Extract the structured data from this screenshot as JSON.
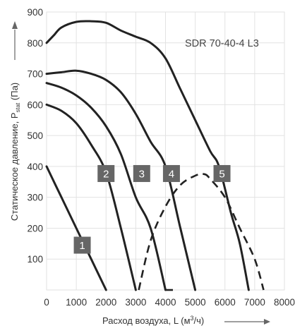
{
  "chart_data": {
    "type": "line",
    "title": "SDR 70-40-4 L3",
    "xlabel": "Расход воздуха, L (м³/ч)",
    "xlabel_parts": {
      "main": "Расход воздуха, L (м",
      "sup": "3",
      "tail": "/ч)"
    },
    "ylabel": "Статическое давление, Pstat (Па)",
    "ylabel_parts": {
      "main": "Статическое давление, P",
      "sub": "stat",
      "tail": " (Па)"
    },
    "xlim": [
      0,
      8000
    ],
    "ylim": [
      0,
      900
    ],
    "x_ticks": [
      "0",
      "1000",
      "2000",
      "3000",
      "4000",
      "5000",
      "6000",
      "7000",
      "8000"
    ],
    "y_ticks": [
      "0",
      "100",
      "200",
      "300",
      "400",
      "500",
      "600",
      "700",
      "800",
      "900"
    ],
    "grid": true,
    "series": [
      {
        "name": "1",
        "points": [
          [
            0,
            400
          ],
          [
            500,
            300
          ],
          [
            1000,
            200
          ],
          [
            1500,
            100
          ],
          [
            2000,
            0
          ]
        ]
      },
      {
        "name": "2",
        "points": [
          [
            0,
            600
          ],
          [
            500,
            580
          ],
          [
            1000,
            540
          ],
          [
            1500,
            470
          ],
          [
            2000,
            380
          ],
          [
            2500,
            200
          ],
          [
            3000,
            0
          ]
        ]
      },
      {
        "name": "3",
        "points": [
          [
            0,
            670
          ],
          [
            500,
            655
          ],
          [
            1000,
            630
          ],
          [
            1500,
            590
          ],
          [
            2000,
            530
          ],
          [
            2500,
            440
          ],
          [
            3000,
            300
          ],
          [
            3500,
            200
          ],
          [
            4000,
            0
          ]
        ]
      },
      {
        "name": "4",
        "points": [
          [
            0,
            700
          ],
          [
            500,
            705
          ],
          [
            1000,
            710
          ],
          [
            1500,
            700
          ],
          [
            2000,
            680
          ],
          [
            2500,
            640
          ],
          [
            3000,
            570
          ],
          [
            3500,
            480
          ],
          [
            4000,
            400
          ],
          [
            4500,
            200
          ],
          [
            5000,
            0
          ]
        ]
      },
      {
        "name": "5",
        "points": [
          [
            0,
            800
          ],
          [
            250,
            825
          ],
          [
            500,
            850
          ],
          [
            1000,
            868
          ],
          [
            1500,
            870
          ],
          [
            2000,
            865
          ],
          [
            2500,
            840
          ],
          [
            3000,
            820
          ],
          [
            3500,
            800
          ],
          [
            4000,
            750
          ],
          [
            4500,
            650
          ],
          [
            5000,
            550
          ],
          [
            5500,
            450
          ],
          [
            5800,
            400
          ],
          [
            6200,
            250
          ],
          [
            6500,
            150
          ],
          [
            6800,
            0
          ]
        ]
      }
    ],
    "efficiency_curve": {
      "style": "dashed",
      "points": [
        [
          3100,
          0
        ],
        [
          3500,
          160
        ],
        [
          4000,
          270
        ],
        [
          4500,
          340
        ],
        [
          5000,
          370
        ],
        [
          5300,
          375
        ],
        [
          5500,
          360
        ],
        [
          6000,
          300
        ],
        [
          6500,
          200
        ],
        [
          7000,
          100
        ],
        [
          7300,
          0
        ]
      ]
    },
    "dashed_drops": [
      {
        "series": "3",
        "points": [
          [
            4000,
            0
          ],
          [
            4250,
            0
          ]
        ]
      },
      {
        "series": "4",
        "points": [
          [
            4500,
            200
          ],
          [
            5000,
            0
          ]
        ]
      }
    ],
    "labels": [
      {
        "text": "1",
        "x": 1200,
        "y": 145
      },
      {
        "text": "2",
        "x": 2000,
        "y": 377
      },
      {
        "text": "3",
        "x": 3200,
        "y": 377
      },
      {
        "text": "4",
        "x": 4200,
        "y": 377
      },
      {
        "text": "5",
        "x": 5900,
        "y": 377
      }
    ],
    "colors": {
      "line": "#222222",
      "grid": "#e2e2e2",
      "badge": "#666666",
      "axis_arrow": "#666666"
    }
  }
}
